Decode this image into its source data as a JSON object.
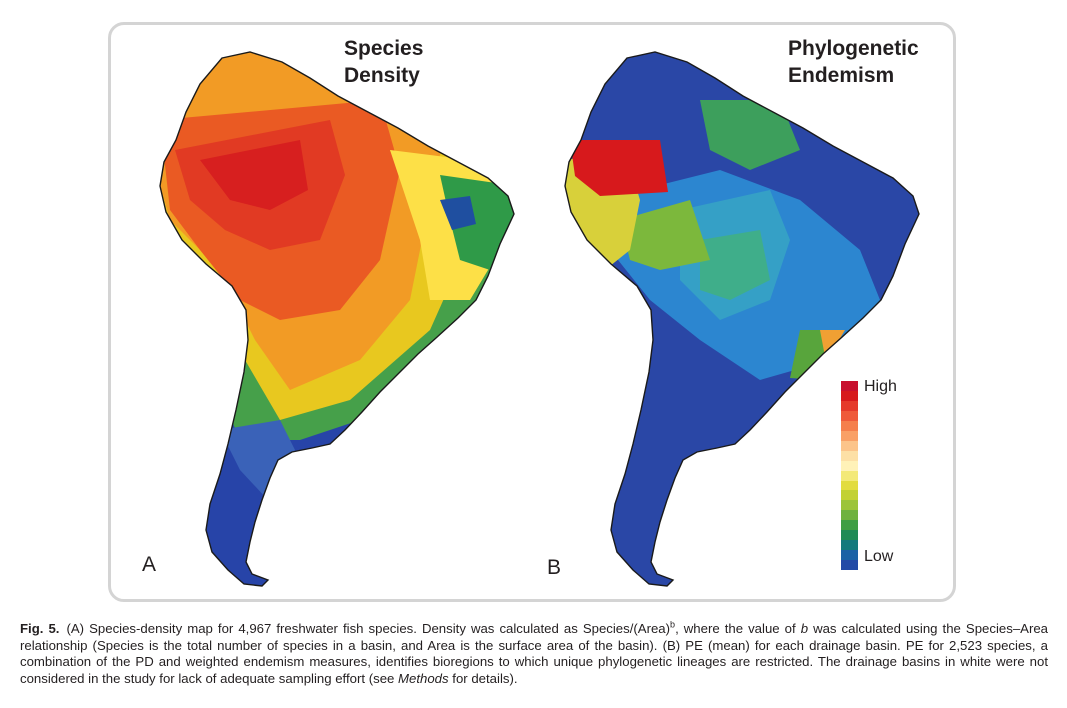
{
  "panels": {
    "a": {
      "title_line1": "Species",
      "title_line2": "Density",
      "letter": "A"
    },
    "b": {
      "title_line1": "Phylogenetic",
      "title_line2": "Endemism",
      "letter": "B"
    }
  },
  "legend": {
    "high_label": "High",
    "low_label": "Low",
    "colors_high_to_low": [
      "#c8102e",
      "#d7191c",
      "#e53a2b",
      "#ef5a3a",
      "#f57f4c",
      "#f9a066",
      "#fcc48a",
      "#fde0a6",
      "#fff2b8",
      "#f3e978",
      "#e2dc3f",
      "#c2d134",
      "#9cc43a",
      "#6fb23f",
      "#3f9e44",
      "#1f8a55",
      "#137a7c",
      "#1b62a5",
      "#224aa6"
    ]
  },
  "caption": {
    "label": "Fig. 5.",
    "part1": "(A) Species-density map for 4,967 freshwater fish species. Density was calculated as Species/(Area)",
    "superscript": "b",
    "part2": ", where the value of ",
    "italic_b": "b",
    "part3": " was calculated using the Species–Area relationship (Species is the total number of species in a basin, and Area is the surface area of the basin). (B) PE (mean) for each drainage basin. PE for 2,523 species, a combination of the PD and weighted endemism measures, identifies bioregions to which unique phylogenetic lineages are restricted. The drainage basins in white were not considered in the study for lack of adequate sampling effort (see ",
    "italic_methods": "Methods",
    "part4": " for details)."
  }
}
